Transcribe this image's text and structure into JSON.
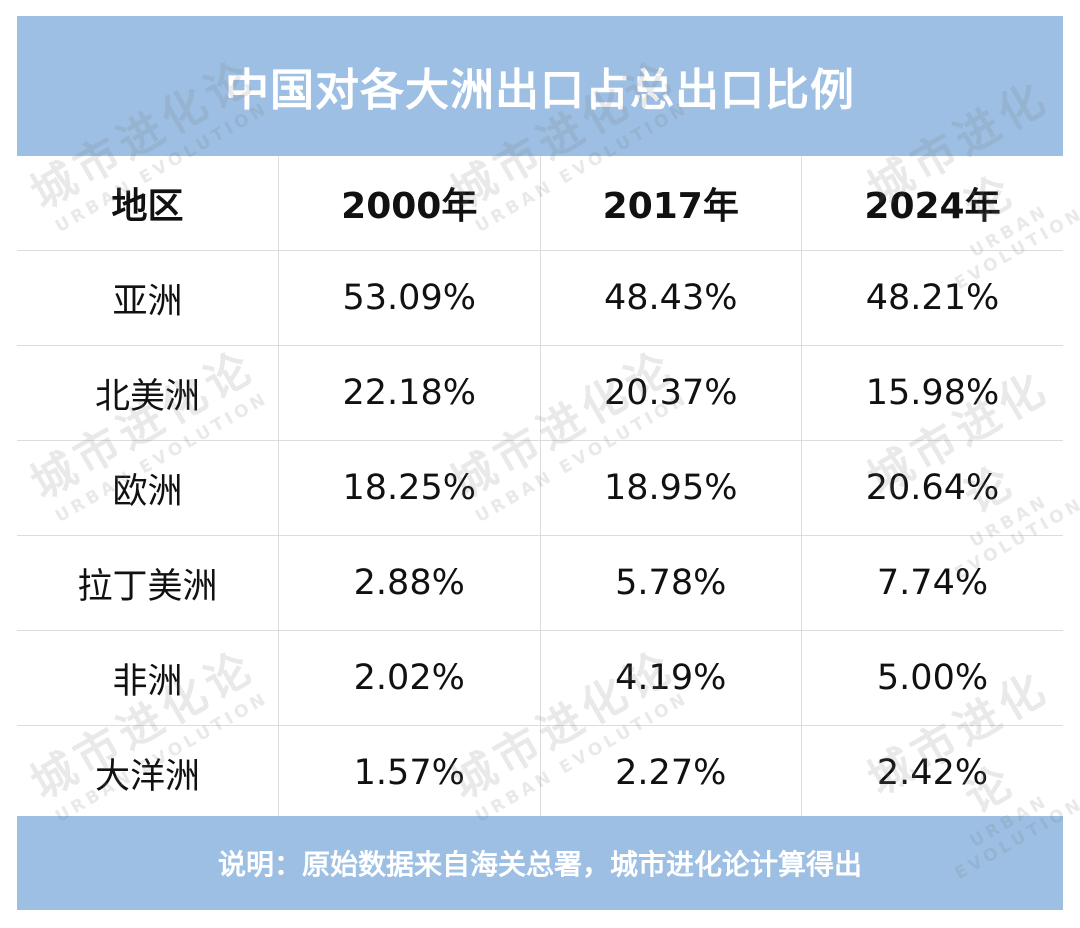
{
  "title": "中国对各大洲出口占总出口比例",
  "table": {
    "headers": [
      "地区",
      "2000年",
      "2017年",
      "2024年"
    ],
    "rows": [
      [
        "亚洲",
        "53.09%",
        "48.43%",
        "48.21%"
      ],
      [
        "北美洲",
        "22.18%",
        "20.37%",
        "15.98%"
      ],
      [
        "欧洲",
        "18.25%",
        "18.95%",
        "20.64%"
      ],
      [
        "拉丁美洲",
        "2.88%",
        "5.78%",
        "7.74%"
      ],
      [
        "非洲",
        "2.02%",
        "4.19%",
        "5.00%"
      ],
      [
        "大洋洲",
        "1.57%",
        "2.27%",
        "2.42%"
      ]
    ]
  },
  "note": "说明：原始数据来自海关总署，城市进化论计算得出",
  "watermark": {
    "cn": "城市进化论",
    "en": "URBAN EVOLUTION"
  },
  "colors": {
    "banner": "#9cbfe3",
    "banner_text": "#ffffff",
    "grid": "#dcdcdc"
  }
}
